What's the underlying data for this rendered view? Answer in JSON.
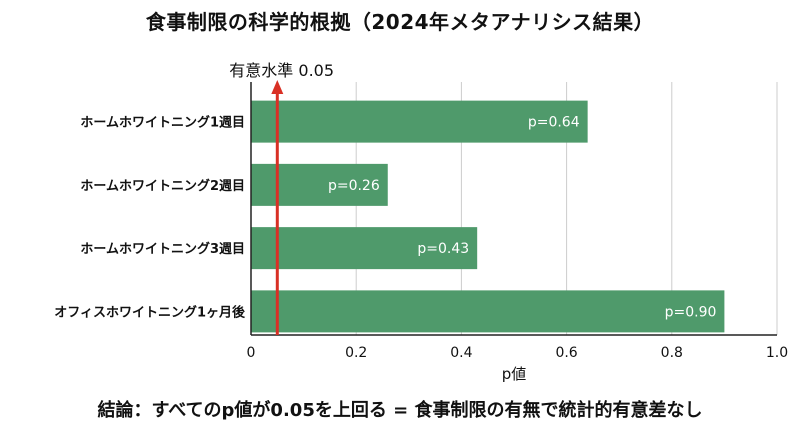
{
  "title": "食事制限の科学的根拠（2024年メタアナリシス結果）",
  "conclusion": "結論：すべてのp値が0.05を上回る = 食事制限の有無で統計的有意差なし",
  "chart_data": {
    "type": "bar",
    "orientation": "horizontal",
    "categories": [
      "ホームホワイトニング1週目",
      "ホームホワイトニング2週目",
      "ホームホワイトニング3週目",
      "オフィスホワイトニング1ヶ月後"
    ],
    "values": [
      0.64,
      0.26,
      0.43,
      0.9
    ],
    "data_labels": [
      "p=0.64",
      "p=0.26",
      "p=0.43",
      "p=0.90"
    ],
    "xlabel": "p値",
    "ylabel": "",
    "xlim": [
      0,
      1.0
    ],
    "xticks": [
      0,
      0.2,
      0.4,
      0.6,
      0.8,
      1.0
    ],
    "xtick_labels": [
      "0",
      "0.2",
      "0.4",
      "0.6",
      "0.8",
      "1.0"
    ],
    "grid": true,
    "reference_line": {
      "value": 0.05,
      "label": "有意水準 0.05",
      "color": "#d93025"
    },
    "bar_color": "#4f9a6b"
  }
}
